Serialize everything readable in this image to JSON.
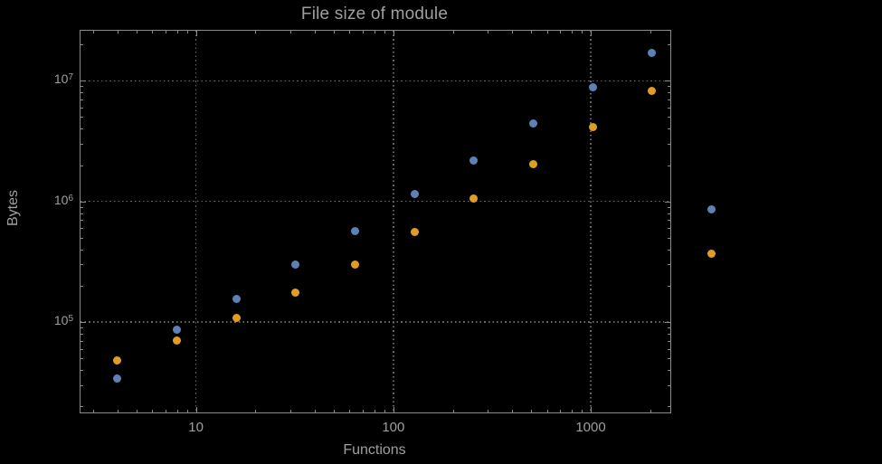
{
  "chart_data": {
    "type": "scatter",
    "title": "File size of module",
    "xlabel": "Functions",
    "ylabel": "Bytes",
    "x_scale": "log",
    "y_scale": "log",
    "grid": "dotted",
    "legend": "none",
    "xlim": [
      2.6,
      2530
    ],
    "ylim": [
      17800,
      26000000
    ],
    "x": [
      4,
      8,
      16,
      32,
      64,
      128,
      256,
      512,
      1024,
      2048,
      4096
    ],
    "series": [
      {
        "name": "blue",
        "color": "#5E81B5",
        "values": [
          34000,
          86000,
          155000,
          300000,
          570000,
          1150000,
          2200000,
          4400000,
          8800000,
          17000000,
          860000
        ]
      },
      {
        "name": "orange",
        "color": "#E19C24",
        "values": [
          48000,
          70000,
          108000,
          175000,
          300000,
          560000,
          1050000,
          2050000,
          4100000,
          8300000,
          370000
        ]
      }
    ],
    "x_tick_labels": [
      {
        "value": 10,
        "label": "10"
      },
      {
        "value": 100,
        "label": "100"
      },
      {
        "value": 1000,
        "label": "1000"
      }
    ],
    "y_tick_labels": [
      {
        "value": 100000,
        "label": "10^5"
      },
      {
        "value": 1000000,
        "label": "10^6"
      },
      {
        "value": 10000000,
        "label": "10^7"
      }
    ],
    "colors": {
      "background": "#000000",
      "frame": "#8a8a8a",
      "grid": "#666666",
      "text": "#9f9f9f"
    }
  }
}
